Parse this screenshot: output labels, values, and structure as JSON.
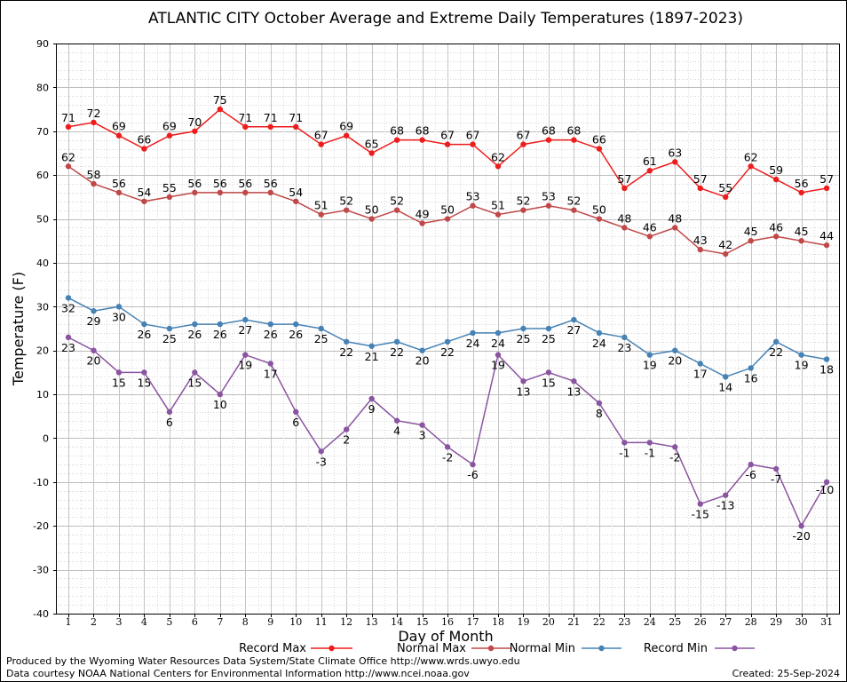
{
  "chart_data": {
    "type": "line",
    "title": "ATLANTIC CITY October Average and Extreme Daily Temperatures (1897-2023)",
    "xlabel": "Day of Month",
    "ylabel": "Temperature (F)",
    "ylim": [
      -40,
      90
    ],
    "yticks": [
      "90",
      "80",
      "70",
      "60",
      "50",
      "40",
      "30",
      "20",
      "10",
      "0",
      "-10",
      "-20",
      "-30",
      "-40"
    ],
    "x": [
      1,
      2,
      3,
      4,
      5,
      6,
      7,
      8,
      9,
      10,
      11,
      12,
      13,
      14,
      15,
      16,
      17,
      18,
      19,
      20,
      21,
      22,
      23,
      24,
      25,
      26,
      27,
      28,
      29,
      30,
      31
    ],
    "grid": true,
    "legend_placement": "bottom",
    "series": [
      {
        "name": "Record Max",
        "color": "#ee1c1c",
        "values": [
          71,
          72,
          69,
          66,
          69,
          70,
          75,
          71,
          71,
          71,
          67,
          69,
          65,
          68,
          68,
          67,
          67,
          62,
          67,
          68,
          68,
          66,
          57,
          61,
          63,
          57,
          55,
          62,
          59,
          56,
          57
        ]
      },
      {
        "name": "Normal Max",
        "color": "#c04848",
        "values": [
          62,
          58,
          56,
          54,
          55,
          56,
          56,
          56,
          56,
          54,
          51,
          52,
          50,
          52,
          49,
          50,
          53,
          51,
          52,
          53,
          52,
          50,
          48,
          46,
          48,
          43,
          42,
          45,
          46,
          45,
          44
        ]
      },
      {
        "name": "Normal Min",
        "color": "#4682b4",
        "values": [
          32,
          29,
          30,
          26,
          25,
          26,
          26,
          27,
          26,
          26,
          25,
          22,
          21,
          22,
          20,
          22,
          24,
          24,
          25,
          25,
          27,
          24,
          23,
          19,
          20,
          17,
          14,
          16,
          22,
          19,
          18
        ]
      },
      {
        "name": "Record Min",
        "color": "#8a55a0",
        "values": [
          23,
          20,
          15,
          15,
          6,
          15,
          10,
          19,
          17,
          6,
          -3,
          2,
          9,
          4,
          3,
          -2,
          -6,
          19,
          13,
          15,
          13,
          8,
          -1,
          -1,
          -2,
          -15,
          -13,
          -6,
          -7,
          -20,
          -10
        ]
      }
    ]
  },
  "footer": {
    "producer": "Produced by the Wyoming Water Resources Data System/State Climate Office http://www.wrds.uwyo.edu",
    "source": "Data courtesy NOAA National Centers for Environmental Information http://www.ncei.noaa.gov",
    "created": "Created:  25-Sep-2024"
  }
}
